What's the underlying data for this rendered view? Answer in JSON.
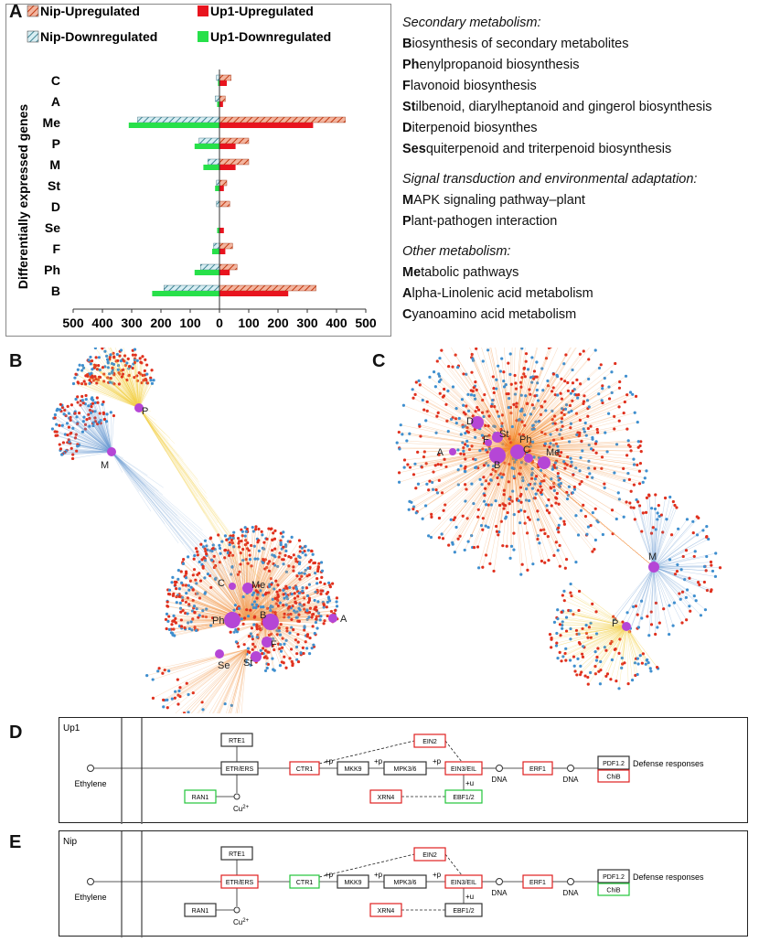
{
  "panels": {
    "a": "A",
    "b": "B",
    "c": "C",
    "d": "D",
    "e": "E"
  },
  "chart_data": {
    "type": "bar",
    "orientation": "horizontal",
    "ylabel": "Differentially expressed genes",
    "categories": [
      "C",
      "A",
      "Me",
      "P",
      "M",
      "St",
      "D",
      "Se",
      "F",
      "Ph",
      "B"
    ],
    "series": [
      {
        "name": "Nip-Upregulated",
        "direction": "up",
        "color": "#e8623c",
        "pattern": "hatch",
        "values": [
          40,
          20,
          430,
          100,
          100,
          25,
          35,
          0,
          45,
          60,
          330
        ]
      },
      {
        "name": "Up1-Upregulated",
        "direction": "up",
        "color": "#e8141e",
        "pattern": "solid",
        "values": [
          25,
          12,
          320,
          55,
          55,
          15,
          0,
          15,
          20,
          35,
          235
        ]
      },
      {
        "name": "Nip-Downregulated",
        "direction": "down",
        "color": "#9ad0dc",
        "pattern": "hatch",
        "values": [
          10,
          15,
          280,
          70,
          40,
          10,
          10,
          0,
          20,
          65,
          190
        ]
      },
      {
        "name": "Up1-Downregulated",
        "direction": "down",
        "color": "#27e04a",
        "pattern": "solid",
        "values": [
          5,
          8,
          310,
          85,
          55,
          15,
          0,
          8,
          25,
          85,
          230
        ]
      }
    ],
    "xticks": [
      "500",
      "400",
      "300",
      "200",
      "100",
      "0",
      "100",
      "200",
      "300",
      "400",
      "500"
    ],
    "xlim": [
      -500,
      500
    ],
    "grid": false,
    "legend_position": "top"
  },
  "legend_list": [
    {
      "type": "cat",
      "text": "Secondary metabolism:"
    },
    {
      "type": "item",
      "bold": "B",
      "rest": "iosynthesis of secondary metabolites"
    },
    {
      "type": "item",
      "bold": "Ph",
      "rest": "enylpropanoid biosynthesis"
    },
    {
      "type": "item",
      "bold": "F",
      "rest": "lavonoid biosynthesis"
    },
    {
      "type": "item",
      "bold": "St",
      "rest": "ilbenoid,  diarylheptanoid and gingerol biosynthesis"
    },
    {
      "type": "item",
      "bold": "D",
      "rest": "iterpenoid biosynthes"
    },
    {
      "type": "item",
      "bold": "Ses",
      "rest": "quiterpenoid and triterpenoid biosynthesis"
    },
    {
      "type": "gap"
    },
    {
      "type": "cat",
      "text": "Signal transduction and environmental adaptation:"
    },
    {
      "type": "item",
      "bold": "M",
      "rest": "APK signaling pathway–plant"
    },
    {
      "type": "item",
      "bold": "P",
      "rest": "lant-pathogen interaction"
    },
    {
      "type": "gap"
    },
    {
      "type": "cat",
      "text": "Other metabolism:"
    },
    {
      "type": "item",
      "bold": "Me",
      "rest": "tabolic pathways"
    },
    {
      "type": "item",
      "bold": "A",
      "rest": "lpha-Linolenic acid metabolism"
    },
    {
      "type": "item",
      "bold": "C",
      "rest": "yanoamino acid metabolism"
    }
  ],
  "networkB": {
    "hubs": [
      {
        "label": "P"
      },
      {
        "label": "M"
      },
      {
        "label": "C"
      },
      {
        "label": "Me"
      },
      {
        "label": "A"
      },
      {
        "label": "Ph"
      },
      {
        "label": "B"
      },
      {
        "label": "F"
      },
      {
        "label": "Se"
      },
      {
        "label": "St"
      }
    ]
  },
  "networkC": {
    "hubs": [
      {
        "label": "D"
      },
      {
        "label": "F"
      },
      {
        "label": "St"
      },
      {
        "label": "Ph"
      },
      {
        "label": "A"
      },
      {
        "label": "B"
      },
      {
        "label": "C"
      },
      {
        "label": "Me"
      },
      {
        "label": "M"
      },
      {
        "label": "P"
      }
    ]
  },
  "pathways": {
    "common": {
      "ethylene": "Ethylene",
      "cu": "Cu",
      "cu_sup": "2+",
      "dna": "DNA",
      "defense": "Defense responses",
      "plus_p": "+p",
      "plus_u": "+u",
      "genes": {
        "RTE1": "RTE1",
        "ETR": "ETR/ERS",
        "CTR1": "CTR1",
        "MKK9": "MKK9",
        "MPK": "MPK3/6",
        "EIN2": "EIN2",
        "EIN3": "EIN3/EIL",
        "ERF1": "ERF1",
        "PDF": "PDF1.2",
        "ChiB": "ChiB",
        "RAN1": "RAN1",
        "XRN4": "XRN4",
        "EBF": "EBF1/2"
      }
    },
    "d": {
      "label": "Up1",
      "colors": {
        "RTE1": "#333",
        "ETR": "#333",
        "CTR1": "#e02020",
        "MKK9": "#333",
        "MPK": "#333",
        "EIN2": "#e02020",
        "EIN3": "#e02020",
        "ERF1": "#e02020",
        "PDF": "#333",
        "ChiB": "#e02020",
        "RAN1": "#22c43a",
        "XRN4": "#e02020",
        "EBF": "#22c43a"
      }
    },
    "e": {
      "label": "Nip",
      "colors": {
        "RTE1": "#333",
        "ETR": "#e02020",
        "CTR1": "#22c43a",
        "MKK9": "#333",
        "MPK": "#333",
        "EIN2": "#e02020",
        "EIN3": "#e02020",
        "ERF1": "#e02020",
        "PDF": "#333",
        "ChiB": "#22c43a",
        "RAN1": "#333",
        "XRN4": "#e02020",
        "EBF": "#333"
      }
    }
  }
}
